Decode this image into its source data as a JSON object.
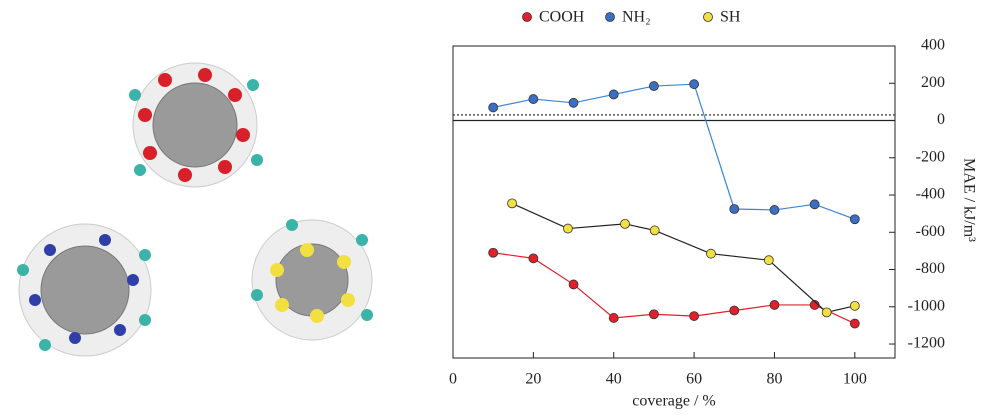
{
  "chart_data": {
    "type": "line",
    "x_label": "coverage / %",
    "y_label": "MAE / kJ/m³",
    "xlim": [
      0,
      110
    ],
    "xticks": [
      0,
      20,
      40,
      60,
      80,
      100
    ],
    "ylim": [
      -1275,
      400
    ],
    "yticks": [
      400,
      200,
      0,
      -200,
      -400,
      -600,
      -800,
      -1000,
      -1200
    ],
    "hlines": [
      {
        "value": 0,
        "style": "solid"
      },
      {
        "value": 30,
        "style": "dotted"
      }
    ],
    "series": [
      {
        "name": "COOH",
        "color": "#e0202a",
        "line_color": "#e0202a",
        "x": [
          10,
          20,
          30,
          40,
          50,
          60,
          70,
          80,
          90,
          100
        ],
        "values": [
          -710,
          -740,
          -880,
          -1060,
          -1040,
          -1050,
          -1020,
          -990,
          -990,
          -1090
        ]
      },
      {
        "name": "NH₂",
        "color": "#3a6fc4",
        "line_color": "#3a86d4",
        "x": [
          10,
          20,
          30,
          40,
          50,
          60,
          70,
          80,
          90,
          100
        ],
        "values": [
          70,
          115,
          95,
          140,
          185,
          195,
          -475,
          -480,
          -450,
          -530
        ]
      },
      {
        "name": "SH",
        "color": "#f2e040",
        "line_color": "#222222",
        "x": [
          14.7,
          28.6,
          42.8,
          50.2,
          64.2,
          78.6,
          93,
          100
        ],
        "values": [
          -445,
          -580,
          -555,
          -590,
          -715,
          -750,
          -1030,
          -995
        ]
      }
    ]
  }
}
